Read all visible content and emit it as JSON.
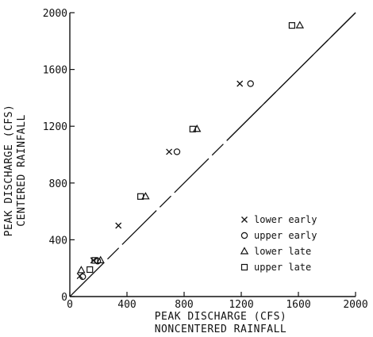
{
  "chart_data": {
    "type": "scatter",
    "title": "",
    "xlabel_lines": [
      "PEAK DISCHARGE (CFS)",
      "NONCENTERED RAINFALL"
    ],
    "ylabel_lines": [
      "PEAK DISCHARGE (CFS)",
      "CENTERED RAINFALL"
    ],
    "xlim": [
      0,
      2000
    ],
    "ylim": [
      0,
      2000
    ],
    "xticks": [
      "0",
      "400",
      "800",
      "1200",
      "1600",
      "2000"
    ],
    "yticks": [
      "0",
      "400",
      "800",
      "1200",
      "1600",
      "2000"
    ],
    "tick_values": [
      0,
      400,
      800,
      1200,
      1600,
      2000
    ],
    "grid": false,
    "legend_position": "bottom-right",
    "reference_line": {
      "from": [
        0,
        0
      ],
      "to": [
        2000,
        2000
      ],
      "style": "solid-then-dashed"
    },
    "series": [
      {
        "name": "lower early",
        "marker": "x",
        "points": [
          [
            70,
            145
          ],
          [
            165,
            255
          ],
          [
            340,
            500
          ],
          [
            695,
            1020
          ],
          [
            1190,
            1500
          ]
        ]
      },
      {
        "name": "upper early",
        "marker": "circle-open",
        "points": [
          [
            90,
            140
          ],
          [
            195,
            250
          ],
          [
            750,
            1020
          ],
          [
            1265,
            1500
          ]
        ]
      },
      {
        "name": "lower late",
        "marker": "triangle",
        "points": [
          [
            80,
            185
          ],
          [
            215,
            255
          ],
          [
            530,
            705
          ],
          [
            890,
            1180
          ],
          [
            1610,
            1910
          ]
        ]
      },
      {
        "name": "upper late",
        "marker": "square",
        "points": [
          [
            140,
            190
          ],
          [
            175,
            255
          ],
          [
            495,
            705
          ],
          [
            860,
            1180
          ],
          [
            1555,
            1910
          ]
        ]
      }
    ]
  }
}
